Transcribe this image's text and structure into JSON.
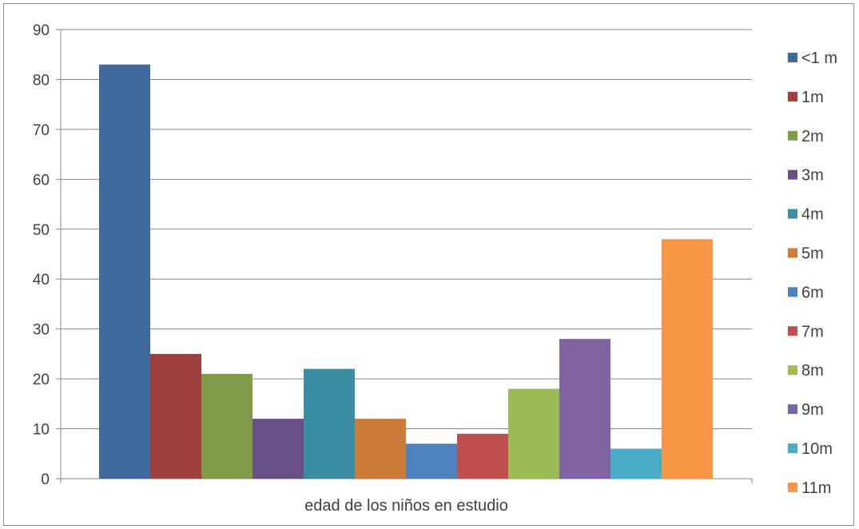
{
  "chart_data": {
    "type": "bar",
    "title": "",
    "xlabel": "",
    "ylabel": "",
    "categories": [
      "edad de los niños en estudio"
    ],
    "ylim": [
      0,
      90
    ],
    "yticks": [
      0,
      10,
      20,
      30,
      40,
      50,
      60,
      70,
      80,
      90
    ],
    "grid": true,
    "legend_position": "right",
    "series": [
      {
        "name": "<1 m",
        "values": [
          83
        ],
        "color": "#3F689B"
      },
      {
        "name": "1m",
        "values": [
          25
        ],
        "color": "#9E413E"
      },
      {
        "name": "2m",
        "values": [
          21
        ],
        "color": "#7F9A48"
      },
      {
        "name": "3m",
        "values": [
          12
        ],
        "color": "#695185"
      },
      {
        "name": "4m",
        "values": [
          22
        ],
        "color": "#3C8DA3"
      },
      {
        "name": "5m",
        "values": [
          12
        ],
        "color": "#CC7B38"
      },
      {
        "name": "6m",
        "values": [
          7
        ],
        "color": "#4F81BD"
      },
      {
        "name": "7m",
        "values": [
          9
        ],
        "color": "#C0504D"
      },
      {
        "name": "8m",
        "values": [
          18
        ],
        "color": "#9BBB59"
      },
      {
        "name": "9m",
        "values": [
          28
        ],
        "color": "#8064A2"
      },
      {
        "name": "10m",
        "values": [
          6
        ],
        "color": "#4BACC6"
      },
      {
        "name": "11m",
        "values": [
          48
        ],
        "color": "#F79646"
      }
    ]
  }
}
